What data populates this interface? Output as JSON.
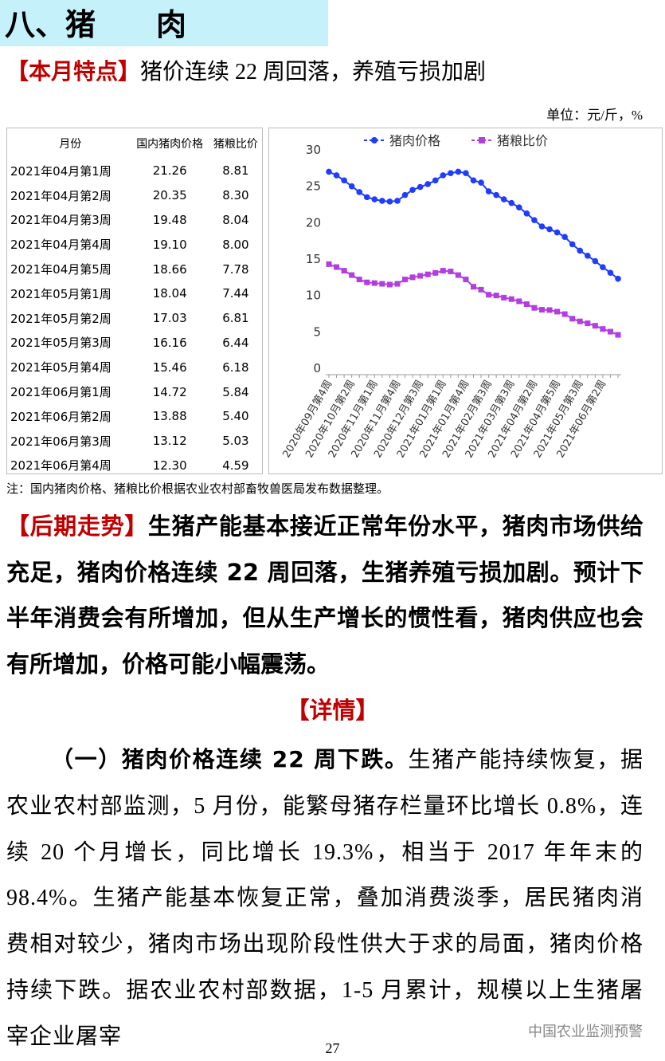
{
  "header": {
    "title": "八、猪　　肉"
  },
  "summary": {
    "lead": "【本月特点】",
    "text": "猪价连续 22 周回落，养殖亏损加剧"
  },
  "unit": "单位：元/斤，%",
  "table": {
    "headers": [
      "月份",
      "国内猪肉价格",
      "猪粮比价"
    ],
    "rows": [
      [
        "2021年04月第1周",
        "21.26",
        "8.81"
      ],
      [
        "2021年04月第2周",
        "20.35",
        "8.30"
      ],
      [
        "2021年04月第3周",
        "19.48",
        "8.04"
      ],
      [
        "2021年04月第4周",
        "19.10",
        "8.00"
      ],
      [
        "2021年04月第5周",
        "18.66",
        "7.78"
      ],
      [
        "2021年05月第1周",
        "18.04",
        "7.44"
      ],
      [
        "2021年05月第2周",
        "17.03",
        "6.81"
      ],
      [
        "2021年05月第3周",
        "16.16",
        "6.44"
      ],
      [
        "2021年05月第4周",
        "15.46",
        "6.18"
      ],
      [
        "2021年06月第1周",
        "14.72",
        "5.84"
      ],
      [
        "2021年06月第2周",
        "13.88",
        "5.40"
      ],
      [
        "2021年06月第3周",
        "13.12",
        "5.03"
      ],
      [
        "2021年06月第4周",
        "12.30",
        "4.59"
      ]
    ]
  },
  "chart_data": {
    "type": "line",
    "categories": [
      "2020年09月第4周",
      null,
      null,
      "2020年10月第2周",
      null,
      null,
      "2020年11月第1周",
      null,
      null,
      "2020年11月第4周",
      null,
      null,
      "2020年12月第3周",
      null,
      null,
      "2021年01月第1周",
      null,
      null,
      "2021年01月第4周",
      null,
      null,
      "2021年02月第3周",
      null,
      null,
      "2021年03月第3周",
      null,
      null,
      "2021年04月第2周",
      null,
      null,
      "2021年04月第5周",
      null,
      null,
      "2021年05月第3周",
      null,
      null,
      "2021年06月第2周",
      null,
      null
    ],
    "series": [
      {
        "name": "猪肉价格",
        "color": "#1f3cff",
        "marker": "circle",
        "values": [
          27.0,
          26.5,
          25.8,
          25.0,
          24.2,
          23.5,
          23.2,
          23.0,
          22.9,
          23.0,
          23.8,
          24.5,
          24.9,
          25.3,
          25.8,
          26.5,
          26.8,
          27.0,
          26.8,
          25.8,
          25.5,
          24.3,
          23.8,
          23.2,
          22.7,
          22.1,
          21.26,
          20.35,
          19.48,
          19.1,
          18.66,
          18.04,
          17.03,
          16.16,
          15.46,
          14.72,
          13.88,
          13.12,
          12.3
        ]
      },
      {
        "name": "猪粮比价",
        "color": "#b23ee0",
        "marker": "square",
        "values": [
          14.3,
          13.9,
          13.4,
          12.8,
          12.2,
          11.8,
          11.7,
          11.6,
          11.5,
          11.6,
          12.2,
          12.5,
          12.7,
          12.9,
          13.1,
          13.4,
          13.3,
          12.8,
          12.2,
          11.2,
          10.8,
          10.1,
          10.0,
          9.7,
          9.5,
          9.2,
          8.81,
          8.3,
          8.04,
          8.0,
          7.78,
          7.44,
          6.81,
          6.44,
          6.18,
          5.84,
          5.4,
          5.03,
          4.59
        ]
      }
    ],
    "ylim": [
      0,
      30
    ],
    "yticks": [
      0,
      5,
      10,
      15,
      20,
      25,
      30
    ],
    "legend": "top"
  },
  "note": "注：国内猪肉价格、猪粮比价根据农业农村部畜牧兽医局发布数据整理。",
  "trend": {
    "lead": "【后期走势】",
    "text": "生猪产能基本接近正常年份水平，猪肉市场供给充足，猪肉价格连续 22 周回落，生猪养殖亏损加剧。预计下半年消费会有所增加，但从生产增长的惯性看，猪肉供应也会有所增加，价格可能小幅震荡。"
  },
  "details": {
    "heading": "【详情】",
    "lead": "（一）猪肉价格连续 22 周下跌。",
    "text": "生猪产能持续恢复，据农业农村部监测，5 月份，能繁母猪存栏量环比增长 0.8%，连续 20 个月增长，同比增长 19.3%，相当于 2017 年年末的 98.4%。生猪产能基本恢复正常，叠加消费淡季，居民猪肉消费相对较少，猪肉市场出现阶段性供大于求的局面，猪肉价格持续下跌。据农业农村部数据，1-5 月累计，规模以上生猪屠宰企业屠宰"
  },
  "watermark": "中国农业监测预警",
  "page_number": "27"
}
